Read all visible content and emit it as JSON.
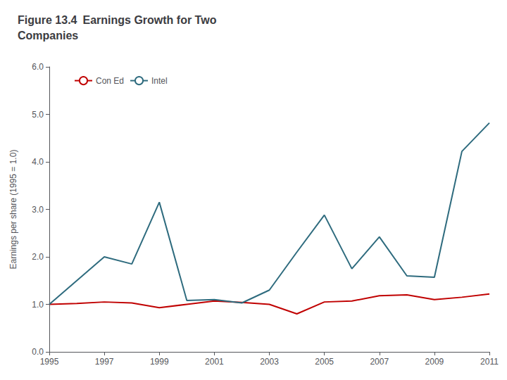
{
  "chart_data": {
    "type": "line",
    "title": "Figure 13.4 Earnings Growth for Two\nCompanies",
    "y_label": "Earnings per share (1995 = 1.0)",
    "x": [
      1995,
      1996,
      1997,
      1998,
      1999,
      2000,
      2001,
      2002,
      2003,
      2004,
      2005,
      2006,
      2007,
      2008,
      2009,
      2010,
      2011
    ],
    "series": [
      {
        "name": "Con Ed",
        "color": "#C00000",
        "values": [
          1.0,
          1.02,
          1.05,
          1.03,
          0.93,
          1.0,
          1.07,
          1.04,
          1.0,
          0.8,
          1.05,
          1.07,
          1.18,
          1.2,
          1.1,
          1.15,
          1.22
        ]
      },
      {
        "name": "Intel",
        "color": "#2E6B7E",
        "values": [
          1.0,
          1.5,
          2.0,
          1.85,
          3.15,
          1.08,
          1.1,
          1.03,
          1.3,
          2.1,
          2.88,
          1.75,
          2.42,
          1.6,
          1.57,
          4.22,
          4.82
        ]
      }
    ],
    "xlim": [
      1995,
      2011
    ],
    "xticks": [
      1995,
      1997,
      1999,
      2001,
      2003,
      2005,
      2007,
      2009,
      2011
    ],
    "ylim": [
      0.0,
      6.0
    ],
    "yticks": [
      {
        "value": 0,
        "label": "0.0"
      },
      {
        "value": 1,
        "label": "1.0"
      },
      {
        "value": 2,
        "label": "2.0"
      },
      {
        "value": 3,
        "label": "3.0"
      },
      {
        "value": 4,
        "label": "4.0"
      },
      {
        "value": 5,
        "label": "5.0"
      },
      {
        "value": 6,
        "label": "6.0"
      }
    ],
    "grid": false,
    "legend": "upper left"
  }
}
